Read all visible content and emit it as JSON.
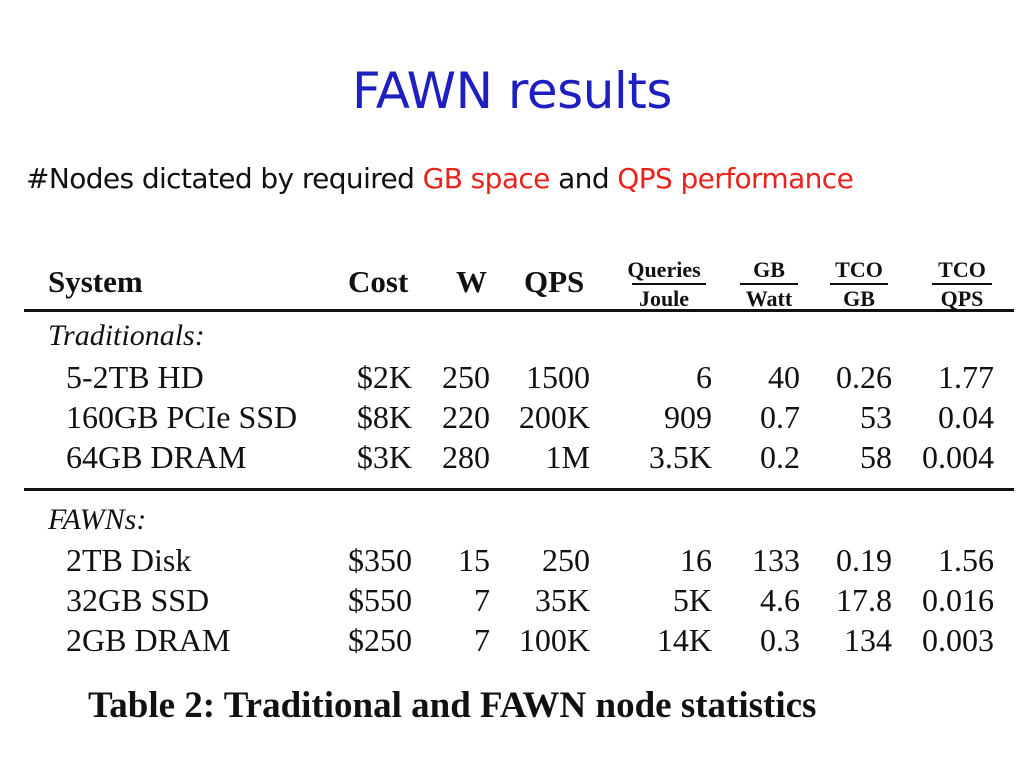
{
  "slide": {
    "title": "FAWN results",
    "subtitle_prefix": "#Nodes dictated by required ",
    "subtitle_hl1": "GB space",
    "subtitle_mid": " and ",
    "subtitle_hl2": "QPS performance"
  },
  "colors": {
    "title": "#1f1fbf",
    "highlight": "#e8241d",
    "text": "#111111"
  },
  "table": {
    "headers": {
      "system": "System",
      "cost": "Cost",
      "w": "W",
      "qps": "QPS",
      "queries_joule_num": "Queries",
      "queries_joule_den": "Joule",
      "gb_watt_num": "GB",
      "gb_watt_den": "Watt",
      "tco_gb_num": "TCO",
      "tco_gb_den": "GB",
      "tco_qps_num": "TCO",
      "tco_qps_den": "QPS"
    },
    "sections": [
      {
        "label": "Traditionals:",
        "rows": [
          {
            "system": "5-2TB HD",
            "cost": "$2K",
            "w": "250",
            "qps": "1500",
            "qj": "6",
            "gbw": "40",
            "tcogb": "0.26",
            "tcoqps": "1.77"
          },
          {
            "system": "160GB PCIe SSD",
            "cost": "$8K",
            "w": "220",
            "qps": "200K",
            "qj": "909",
            "gbw": "0.7",
            "tcogb": "53",
            "tcoqps": "0.04"
          },
          {
            "system": "64GB DRAM",
            "cost": "$3K",
            "w": "280",
            "qps": "1M",
            "qj": "3.5K",
            "gbw": "0.2",
            "tcogb": "58",
            "tcoqps": "0.004"
          }
        ]
      },
      {
        "label": "FAWNs:",
        "rows": [
          {
            "system": "2TB Disk",
            "cost": "$350",
            "w": "15",
            "qps": "250",
            "qj": "16",
            "gbw": "133",
            "tcogb": "0.19",
            "tcoqps": "1.56"
          },
          {
            "system": "32GB SSD",
            "cost": "$550",
            "w": "7",
            "qps": "35K",
            "qj": "5K",
            "gbw": "4.6",
            "tcogb": "17.8",
            "tcoqps": "0.016"
          },
          {
            "system": "2GB DRAM",
            "cost": "$250",
            "w": "7",
            "qps": "100K",
            "qj": "14K",
            "gbw": "0.3",
            "tcogb": "134",
            "tcoqps": "0.003"
          }
        ]
      }
    ],
    "caption": "Table 2: Traditional and FAWN node statistics"
  }
}
